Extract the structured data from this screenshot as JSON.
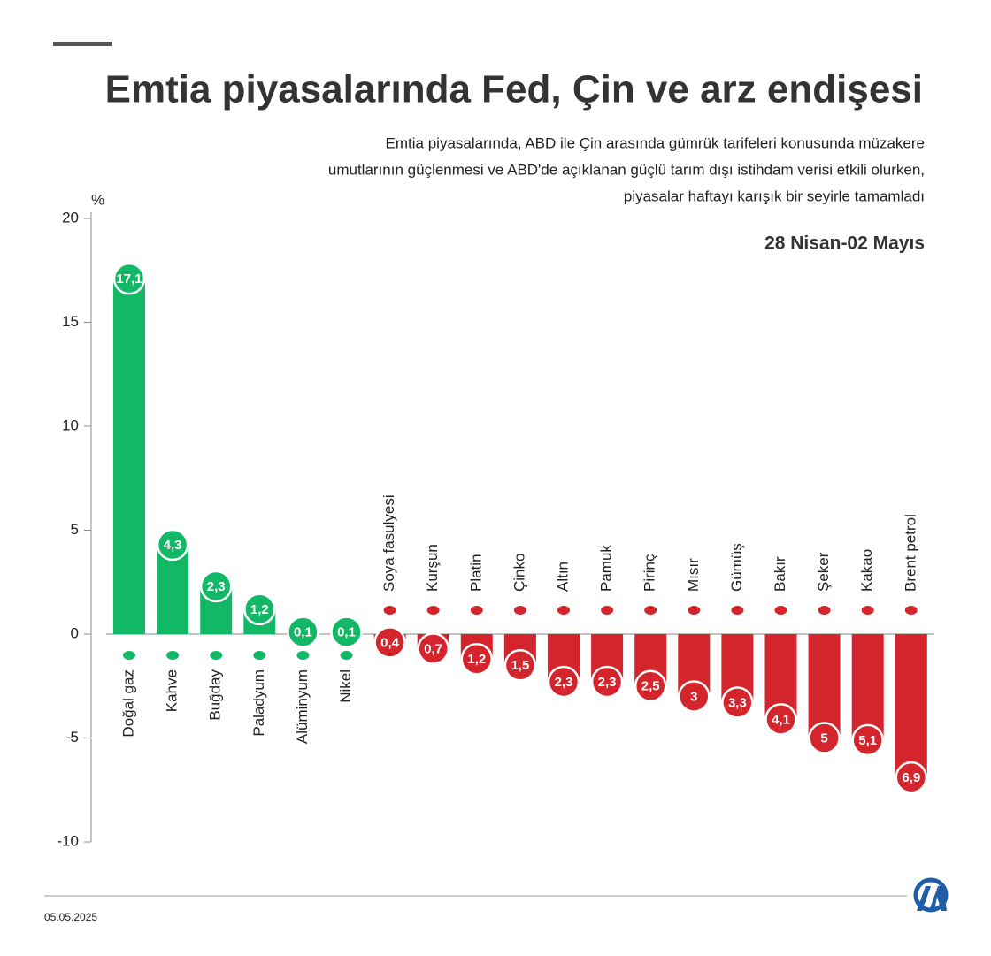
{
  "chart_data": {
    "type": "bar",
    "title": "Emtia piyasalarında Fed, Çin ve arz endişesi",
    "subtitle": [
      "Emtia piyasalarında, ABD ile Çin arasında gümrük tarifeleri konusunda müzakere",
      "umutlarının güçlenmesi ve ABD'de açıklanan güçlü tarım dışı istihdam verisi etkili olurken,",
      "piyasalar haftayı karışık bir seyirle tamamladı"
    ],
    "period": "28 Nisan-02 Mayıs",
    "y_label": "%",
    "date": "05.05.2025",
    "categories": [
      "Doğal gaz",
      "Kahve",
      "Buğday",
      "Paladyum",
      "Alüminyum",
      "Nikel",
      "Soya fasulyesi",
      "Kurşun",
      "Platin",
      "Çinko",
      "Altın",
      "Pamuk",
      "Pirinç",
      "Mısır",
      "Gümüş",
      "Bakır",
      "Şeker",
      "Kakao",
      "Brent petrol"
    ],
    "values": [
      17.1,
      4.3,
      2.3,
      1.2,
      0.1,
      0.1,
      -0.4,
      -0.7,
      -1.2,
      -1.5,
      -2.3,
      -2.3,
      -2.5,
      -3,
      -3.3,
      -4.1,
      -5,
      -5.1,
      -6.9
    ],
    "value_labels": [
      "17,1",
      "4,3",
      "2,3",
      "1,2",
      "0,1",
      "0,1",
      "0,4",
      "0,7",
      "1,2",
      "1,5",
      "2,3",
      "2,3",
      "2,5",
      "3",
      "3,3",
      "4,1",
      "5",
      "5,1",
      "6,9"
    ],
    "positive_color": "#12b866",
    "negative_color": "#d4252c",
    "ylim": [
      -10,
      20
    ],
    "yticks": [
      20,
      15,
      10,
      5,
      0,
      -5,
      -10
    ]
  }
}
